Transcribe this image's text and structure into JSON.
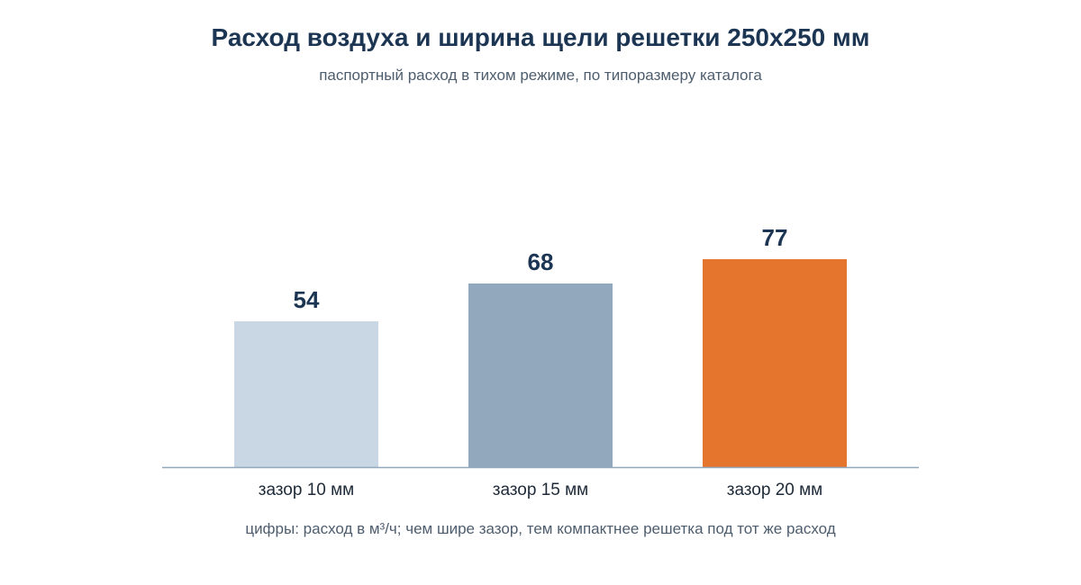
{
  "chart_data": {
    "type": "bar",
    "title": "Расход воздуха и ширина щели решетки 250х250 мм",
    "subtitle": "паспортный расход в тихом режиме, по типоразмеру каталога",
    "categories": [
      "зазор 10 мм",
      "зазор 15 мм",
      "зазор 20 мм"
    ],
    "values": [
      54,
      68,
      77
    ],
    "value_labels": [
      "54",
      "68",
      "77"
    ],
    "bar_colors": [
      "#c9d6e3",
      "#91a8bd",
      "#e5742d"
    ],
    "axis_color": "#91a8bd",
    "ylim": [
      0,
      100
    ],
    "grid": false,
    "footnote": "цифры: расход в м³/ч; чем шире зазор, тем компактнее решетка под тот же расход"
  }
}
